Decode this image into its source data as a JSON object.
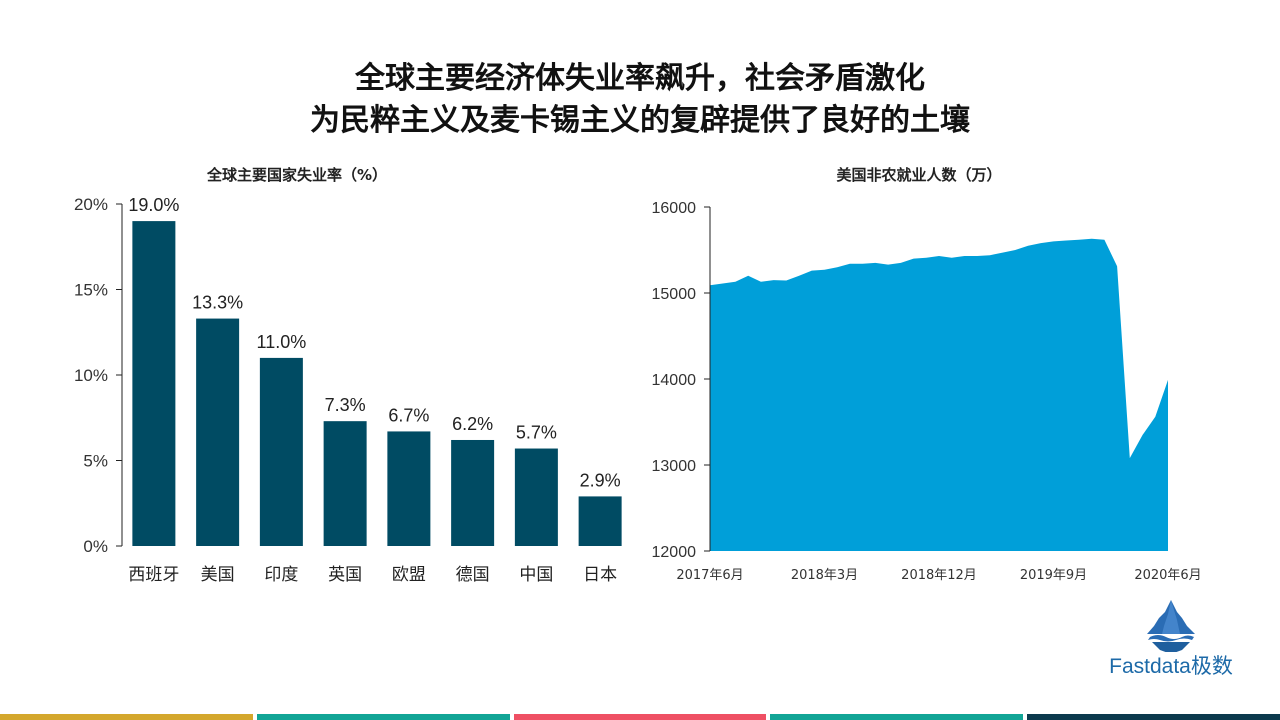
{
  "page": {
    "title_line1": "全球主要经济体失业率飙升，社会矛盾激化",
    "title_line2": "为民粹主义及麦卡锡主义的复辟提供了良好的土壤"
  },
  "colors": {
    "bar": "#004b63",
    "area": "#009fd9",
    "axis": "#222222",
    "footer": [
      "#d4a72c",
      "#12a596",
      "#ef5064",
      "#12a596",
      "#0c3a4d"
    ]
  },
  "logo": {
    "text": "Fastdata极数",
    "icon": "iceberg-icon"
  },
  "chart_data": [
    {
      "type": "bar",
      "title": "全球主要国家失业率（%）",
      "categories": [
        "西班牙",
        "美国",
        "印度",
        "英国",
        "欧盟",
        "德国",
        "中国",
        "日本"
      ],
      "values": [
        19.0,
        13.3,
        11.0,
        7.3,
        6.7,
        6.2,
        5.7,
        2.9
      ],
      "data_labels": [
        "19.0%",
        "13.3%",
        "11.0%",
        "7.3%",
        "6.7%",
        "6.2%",
        "5.7%",
        "2.9%"
      ],
      "ylim": [
        0,
        20
      ],
      "yticks": [
        0,
        5,
        10,
        15,
        20
      ],
      "ytick_labels": [
        "0%",
        "5%",
        "10%",
        "15%",
        "20%"
      ],
      "grid": false,
      "legend": "none"
    },
    {
      "type": "area",
      "title": "美国非农就业人数（万）",
      "x": [
        "2017-06",
        "2017-07",
        "2017-08",
        "2017-09",
        "2017-10",
        "2017-11",
        "2017-12",
        "2018-01",
        "2018-02",
        "2018-03",
        "2018-04",
        "2018-05",
        "2018-06",
        "2018-07",
        "2018-08",
        "2018-09",
        "2018-10",
        "2018-11",
        "2018-12",
        "2019-01",
        "2019-02",
        "2019-03",
        "2019-04",
        "2019-05",
        "2019-06",
        "2019-07",
        "2019-08",
        "2019-09",
        "2019-10",
        "2019-11",
        "2019-12",
        "2020-01",
        "2020-02",
        "2020-03",
        "2020-04",
        "2020-05",
        "2020-06"
      ],
      "values": [
        15090,
        15110,
        15130,
        15200,
        15130,
        15150,
        15145,
        15200,
        15260,
        15270,
        15300,
        15340,
        15340,
        15350,
        15330,
        15350,
        15400,
        15410,
        15430,
        15410,
        15430,
        15430,
        15440,
        15470,
        15500,
        15550,
        15580,
        15600,
        15610,
        15620,
        15630,
        15620,
        15310,
        13080,
        13350,
        13560,
        13990
      ],
      "xtick_labels": [
        "2017年6月",
        "2018年3月",
        "2018年12月",
        "2019年9月",
        "2020年6月"
      ],
      "xtick_dates": [
        "2017-06",
        "2018-03",
        "2018-12",
        "2019-09",
        "2020-06"
      ],
      "ylim": [
        12000,
        16000
      ],
      "yticks": [
        12000,
        13000,
        14000,
        15000,
        16000
      ],
      "ytick_labels": [
        "12000",
        "13000",
        "14000",
        "15000",
        "16000"
      ],
      "grid": false,
      "legend": "none"
    }
  ]
}
